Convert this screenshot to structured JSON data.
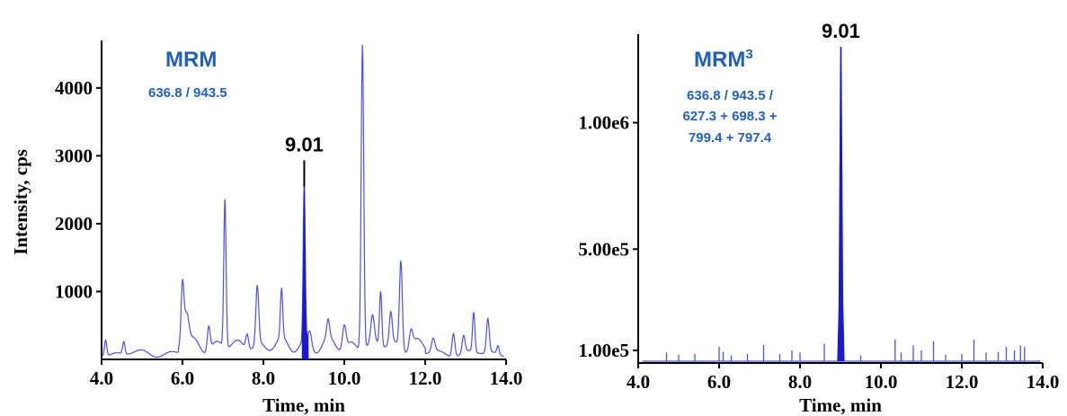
{
  "colors": {
    "trace": "#4d4df0",
    "filled_peak": "#1a1acc",
    "label_blue": "#2060c0",
    "axis": "#000000"
  },
  "chart_data": [
    {
      "type": "line",
      "title": "MRM",
      "subtitle": "636.8 / 943.5",
      "xlabel": "Time, min",
      "ylabel": "Intensity, cps",
      "xlim": [
        4.0,
        14.0
      ],
      "ylim": [
        0,
        4700
      ],
      "xticks": [
        4.0,
        6.0,
        8.0,
        10.0,
        12.0,
        14.0
      ],
      "xtick_labels": [
        "4.0",
        "6.0",
        "8.0",
        "10.0",
        "12.0",
        "14.0"
      ],
      "yticks": [
        1000,
        2000,
        3000,
        4000
      ],
      "ytick_labels": [
        "1000",
        "2000",
        "3000",
        "4000"
      ],
      "peak_label": "9.01",
      "highlight_peak": {
        "time": 9.01,
        "height": 2470,
        "start": 8.95,
        "end": 9.12
      },
      "peaks": [
        {
          "t": 4.1,
          "h": 240,
          "w": 0.04
        },
        {
          "t": 4.55,
          "h": 180,
          "w": 0.04
        },
        {
          "t": 6.0,
          "h": 940,
          "w": 0.05
        },
        {
          "t": 6.1,
          "h": 480,
          "w": 0.08
        },
        {
          "t": 6.65,
          "h": 360,
          "w": 0.05
        },
        {
          "t": 7.05,
          "h": 2180,
          "w": 0.04
        },
        {
          "t": 7.6,
          "h": 220,
          "w": 0.05
        },
        {
          "t": 7.85,
          "h": 860,
          "w": 0.05
        },
        {
          "t": 8.45,
          "h": 720,
          "w": 0.04
        },
        {
          "t": 9.01,
          "h": 2350,
          "w": 0.035
        },
        {
          "t": 9.15,
          "h": 200,
          "w": 0.06
        },
        {
          "t": 9.6,
          "h": 260,
          "w": 0.05
        },
        {
          "t": 10.0,
          "h": 340,
          "w": 0.06
        },
        {
          "t": 10.45,
          "h": 4500,
          "w": 0.045
        },
        {
          "t": 10.7,
          "h": 380,
          "w": 0.06
        },
        {
          "t": 10.9,
          "h": 800,
          "w": 0.04
        },
        {
          "t": 11.15,
          "h": 450,
          "w": 0.05
        },
        {
          "t": 11.4,
          "h": 1300,
          "w": 0.05
        },
        {
          "t": 11.65,
          "h": 250,
          "w": 0.06
        },
        {
          "t": 12.2,
          "h": 200,
          "w": 0.06
        },
        {
          "t": 12.7,
          "h": 350,
          "w": 0.05
        },
        {
          "t": 12.95,
          "h": 250,
          "w": 0.05
        },
        {
          "t": 13.2,
          "h": 580,
          "w": 0.04
        },
        {
          "t": 13.55,
          "h": 500,
          "w": 0.05
        },
        {
          "t": 13.8,
          "h": 120,
          "w": 0.04
        }
      ]
    },
    {
      "type": "line",
      "title": "MRM",
      "title_superscript": "3",
      "subtitle_lines": [
        "636.8 / 943.5 /",
        "627.3 + 698.3 +",
        "799.4 + 797.4"
      ],
      "xlabel": "Time, min",
      "xlim": [
        4.0,
        14.0
      ],
      "ylim": [
        50000,
        1350000
      ],
      "xticks": [
        4.0,
        6.0,
        8.0,
        10.0,
        12.0,
        14.0
      ],
      "xtick_labels": [
        "4.0",
        "6.0",
        "8.0",
        "10.0",
        "12.0",
        "14.0"
      ],
      "yticks": [
        100000,
        500000,
        1000000
      ],
      "ytick_labels": [
        "1.00e5",
        "5.00e5",
        "1.00e6"
      ],
      "peak_label": "9.01",
      "highlight_peak": {
        "time": 9.01,
        "height": 1300000,
        "start": 8.95,
        "end": 9.08
      },
      "noise_spikes": [
        [
          4.7,
          0.12
        ],
        [
          5.0,
          0.09
        ],
        [
          5.4,
          0.1
        ],
        [
          6.0,
          0.2
        ],
        [
          6.1,
          0.13
        ],
        [
          6.3,
          0.08
        ],
        [
          6.7,
          0.1
        ],
        [
          7.1,
          0.23
        ],
        [
          7.5,
          0.1
        ],
        [
          7.8,
          0.15
        ],
        [
          8.0,
          0.12
        ],
        [
          8.6,
          0.24
        ],
        [
          9.5,
          0.08
        ],
        [
          10.35,
          0.3
        ],
        [
          10.5,
          0.12
        ],
        [
          10.8,
          0.22
        ],
        [
          11.0,
          0.15
        ],
        [
          11.3,
          0.28
        ],
        [
          11.6,
          0.09
        ],
        [
          12.0,
          0.1
        ],
        [
          12.3,
          0.3
        ],
        [
          12.6,
          0.12
        ],
        [
          12.9,
          0.13
        ],
        [
          13.1,
          0.2
        ],
        [
          13.3,
          0.15
        ],
        [
          13.45,
          0.22
        ],
        [
          13.55,
          0.2
        ]
      ]
    }
  ]
}
